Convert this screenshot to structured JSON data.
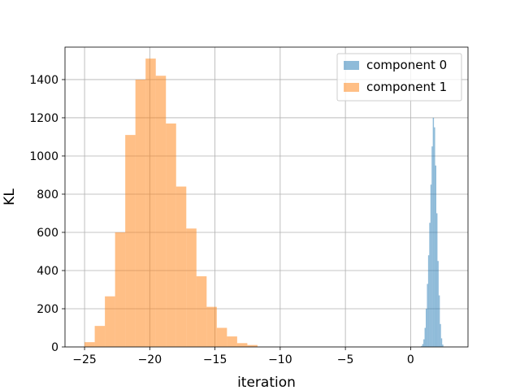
{
  "chart_data": {
    "type": "histogram",
    "xlabel": "iteration",
    "ylabel": "KL",
    "xlim": [
      -26.5,
      4.4
    ],
    "ylim": [
      0,
      1570
    ],
    "xticks": [
      -25,
      -20,
      -15,
      -10,
      -5,
      0
    ],
    "xtick_labels": [
      "−25",
      "−20",
      "−15",
      "−10",
      "−5",
      "0"
    ],
    "yticks": [
      0,
      200,
      400,
      600,
      800,
      1000,
      1200,
      1400
    ],
    "ytick_labels": [
      "0",
      "200",
      "400",
      "600",
      "800",
      "1000",
      "1200",
      "1400"
    ],
    "grid": true,
    "legend_position": "top-right",
    "series": [
      {
        "name": "component 0",
        "color": "#1f77b4",
        "alpha": 0.5,
        "bin_edges": [
          0.8,
          0.89,
          0.98,
          1.07,
          1.16,
          1.25,
          1.34,
          1.43,
          1.52,
          1.61,
          1.7,
          1.79,
          1.88,
          1.97,
          2.06,
          2.15,
          2.24,
          2.33,
          2.42,
          2.51
        ],
        "counts": [
          5,
          15,
          40,
          100,
          200,
          330,
          480,
          650,
          850,
          1050,
          1200,
          1150,
          950,
          700,
          450,
          270,
          120,
          45,
          12
        ]
      },
      {
        "name": "component 1",
        "color": "#ff7f0e",
        "alpha": 0.5,
        "bin_edges": [
          -25.0,
          -24.22,
          -23.44,
          -22.66,
          -21.88,
          -21.1,
          -20.32,
          -19.54,
          -18.76,
          -17.98,
          -17.2,
          -16.42,
          -15.64,
          -14.86,
          -14.08,
          -13.3,
          -12.52,
          -11.74
        ],
        "counts": [
          25,
          110,
          265,
          600,
          1110,
          1400,
          1510,
          1420,
          1170,
          840,
          620,
          370,
          210,
          100,
          55,
          20,
          10
        ]
      }
    ]
  }
}
